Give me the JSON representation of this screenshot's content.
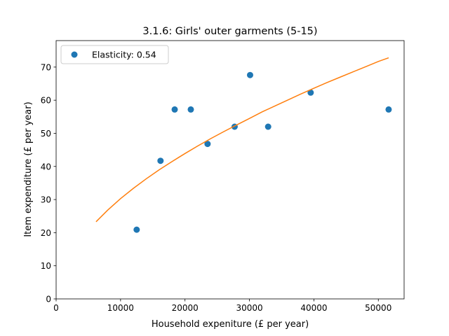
{
  "chart_data": {
    "type": "scatter",
    "title": "3.1.6: Girls' outer garments (5-15)",
    "xlabel": "Household expeniture (£ per year)",
    "ylabel": "Item expenditure (£ per year)",
    "xlim": [
      0,
      54000
    ],
    "ylim": [
      0,
      78
    ],
    "xticks": [
      0,
      10000,
      20000,
      30000,
      40000,
      50000
    ],
    "yticks": [
      0,
      10,
      20,
      30,
      40,
      50,
      60,
      70
    ],
    "grid": false,
    "legend_position": "top-left",
    "series": [
      {
        "name": "Elasticity: 0.54",
        "kind": "scatter",
        "color": "#1f77b4",
        "x": [
          12500,
          16200,
          18400,
          20900,
          23500,
          27700,
          30100,
          32900,
          39500,
          51600
        ],
        "y": [
          20.9,
          41.7,
          57.2,
          57.2,
          46.8,
          52.0,
          67.6,
          52.0,
          62.3,
          57.2
        ]
      },
      {
        "kind": "line",
        "color": "#ff7f0e",
        "x": [
          6200,
          8000,
          10000,
          12000,
          14000,
          16000,
          18000,
          20000,
          22000,
          24000,
          26000,
          28000,
          30000,
          32000,
          34000,
          36000,
          38000,
          40000,
          42000,
          44000,
          46000,
          48000,
          50000,
          51600
        ],
        "y": [
          23.3,
          26.8,
          30.3,
          33.4,
          36.3,
          39.0,
          41.5,
          43.9,
          46.2,
          48.4,
          50.5,
          52.5,
          54.5,
          56.5,
          58.3,
          60.1,
          61.9,
          63.6,
          65.3,
          66.9,
          68.5,
          70.1,
          71.7,
          72.8
        ]
      }
    ]
  }
}
